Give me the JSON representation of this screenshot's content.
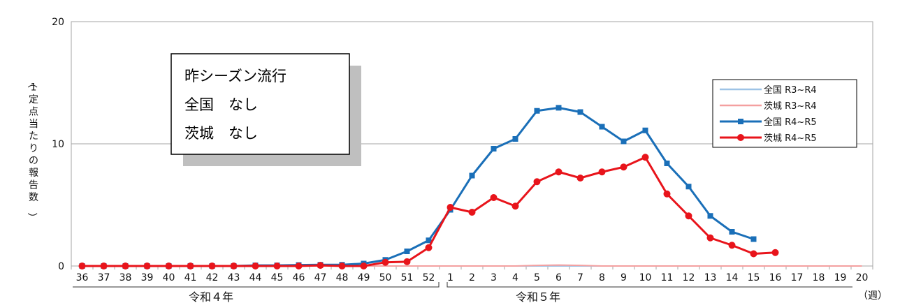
{
  "chart_data": {
    "type": "line",
    "title": "",
    "ylabel": "（1定点当たりの報告数）",
    "xlabel": "（週）",
    "ylim": [
      0,
      20
    ],
    "yticks": [
      "0",
      "10",
      "20"
    ],
    "categories": [
      "36",
      "37",
      "38",
      "39",
      "40",
      "41",
      "42",
      "43",
      "44",
      "45",
      "46",
      "47",
      "48",
      "49",
      "50",
      "51",
      "52",
      "1",
      "2",
      "3",
      "4",
      "5",
      "6",
      "7",
      "8",
      "9",
      "10",
      "11",
      "12",
      "13",
      "14",
      "15",
      "16",
      "17",
      "18",
      "19",
      "20"
    ],
    "era_labels": [
      "令和４年",
      "令和５年"
    ],
    "grid": true,
    "legend_position": "right",
    "series": [
      {
        "name": "全国  R3~R4",
        "color": "#9dc3e6",
        "marker": "none",
        "values": [
          0,
          0,
          0,
          0,
          0,
          0,
          0,
          0,
          0,
          0,
          0,
          0,
          0,
          0,
          0,
          0,
          0,
          0,
          0,
          0,
          0,
          0,
          0,
          0,
          0,
          0,
          0,
          0,
          0,
          0,
          0,
          0,
          0,
          0,
          0,
          0,
          0
        ]
      },
      {
        "name": "茨城  R3~R4",
        "color": "#f4a0a0",
        "marker": "none",
        "values": [
          0,
          0,
          0,
          0,
          0,
          0,
          0,
          0,
          0,
          0,
          0,
          0,
          0,
          0,
          0,
          0,
          0,
          0,
          0,
          0,
          0,
          0.05,
          0.08,
          0.05,
          0,
          0,
          0,
          0,
          0,
          0,
          0,
          0,
          0,
          0,
          0,
          0,
          0
        ]
      },
      {
        "name": "全国  R4~R5",
        "color": "#1a6fb8",
        "marker": "square",
        "values": [
          0,
          0,
          0,
          0,
          0,
          0,
          0,
          0,
          0.05,
          0.05,
          0.08,
          0.1,
          0.1,
          0.2,
          0.5,
          1.2,
          2.1,
          4.6,
          7.4,
          9.6,
          10.4,
          12.7,
          12.95,
          12.6,
          11.4,
          10.2,
          11.1,
          8.4,
          6.5,
          4.1,
          2.8,
          2.2,
          null,
          null,
          null,
          null,
          null
        ]
      },
      {
        "name": "茨城  R4~R5",
        "color": "#e8141b",
        "marker": "circle",
        "values": [
          0,
          0,
          0,
          0,
          0,
          0,
          0,
          0,
          0,
          0,
          0,
          0.05,
          0,
          0,
          0.3,
          0.35,
          1.5,
          4.8,
          4.4,
          5.6,
          4.9,
          6.9,
          7.7,
          7.2,
          7.7,
          8.1,
          8.9,
          5.9,
          4.1,
          2.3,
          1.7,
          1.0,
          1.1,
          null,
          null,
          null,
          null
        ]
      }
    ],
    "annotation": {
      "lines": [
        "昨シーズン流行",
        "全国　なし",
        "茨城　なし"
      ]
    }
  }
}
